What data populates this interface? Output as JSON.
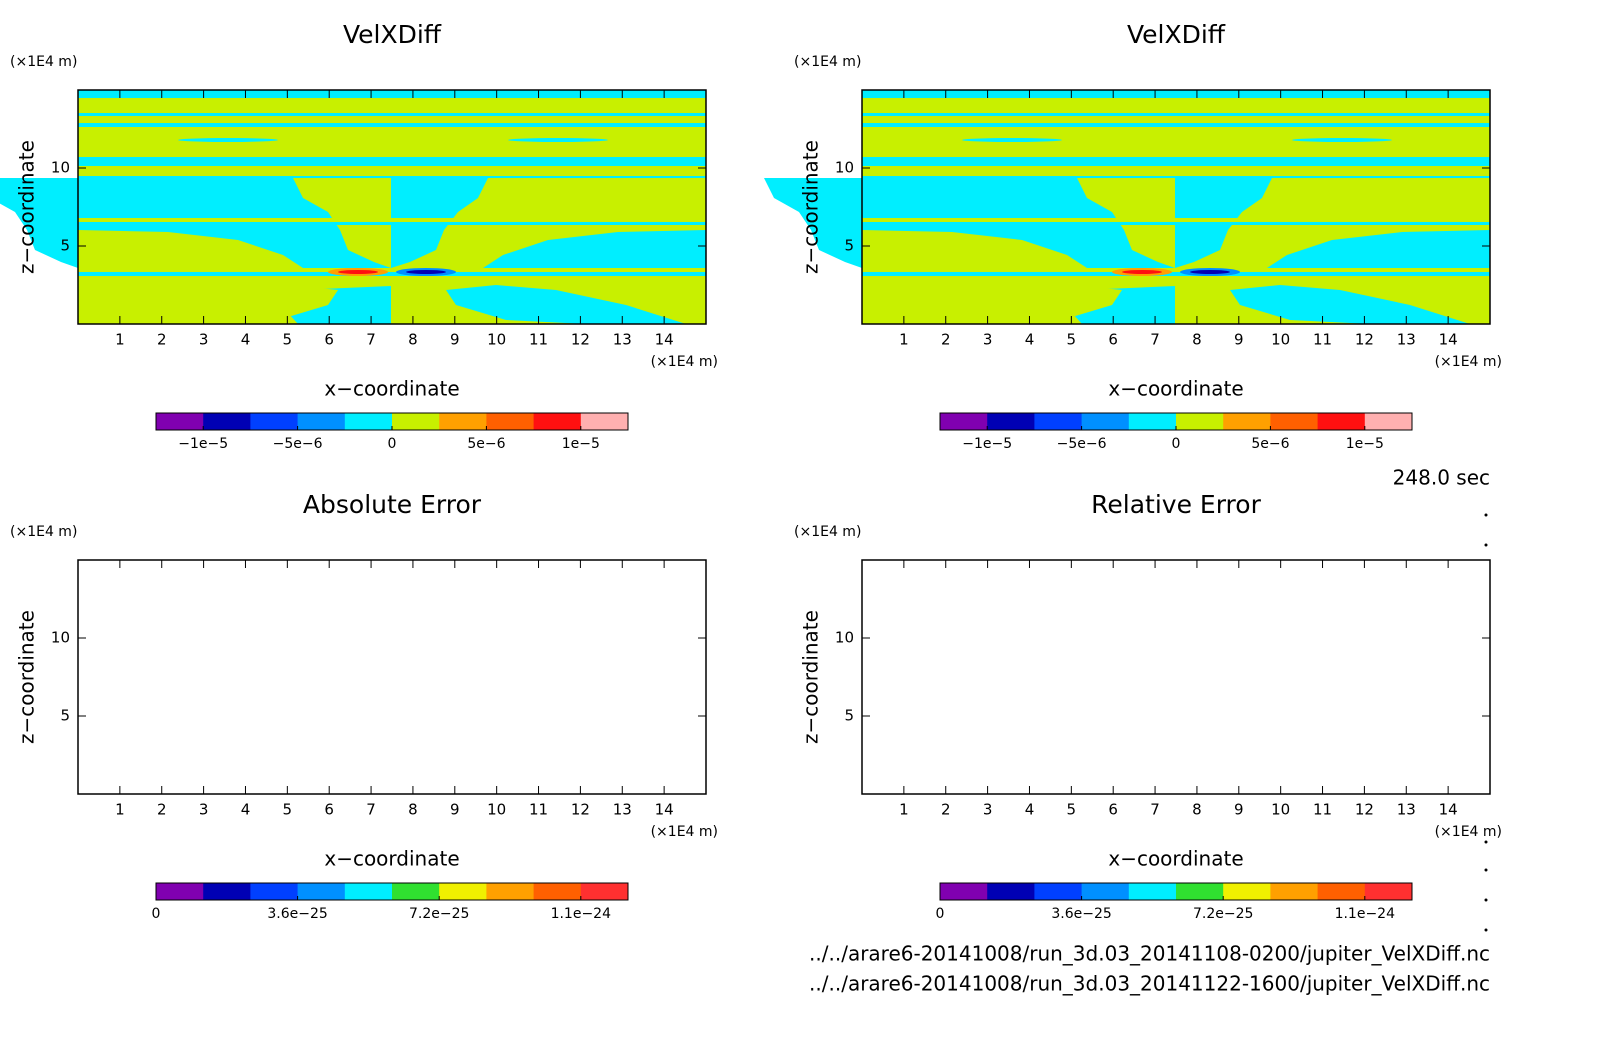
{
  "chart_data": [
    {
      "type": "contour",
      "title": "VelXDiff",
      "x_label": "x−coordinate",
      "y_label": "z−coordinate",
      "x_unit": "(×1E4 m)",
      "y_unit": "(×1E4 m)",
      "xlim": [
        0,
        15
      ],
      "ylim": [
        0,
        15
      ],
      "xticks": [
        1,
        2,
        3,
        4,
        5,
        6,
        7,
        8,
        9,
        10,
        11,
        12,
        13,
        14
      ],
      "yticks": [
        5,
        10
      ],
      "colorbar": {
        "lim": [
          -1.25e-05,
          1.25e-05
        ],
        "colors": [
          "#8000b0",
          "#0000b4",
          "#0040ff",
          "#0090ff",
          "#00eeff",
          "#c8f000",
          "#ffa000",
          "#ff6000",
          "#ff1010",
          "#ffb0b0"
        ],
        "ticks": [
          {
            "value": -1e-05,
            "label": "−1e−5"
          },
          {
            "value": -5e-06,
            "label": "−5e−6"
          },
          0,
          {
            "value": 5e-06,
            "label": "5e−6"
          },
          {
            "value": 1e-05,
            "label": "1e−5"
          }
        ]
      }
    },
    {
      "type": "contour",
      "title": "VelXDiff",
      "x_label": "x−coordinate",
      "y_label": "z−coordinate",
      "x_unit": "(×1E4 m)",
      "y_unit": "(×1E4 m)",
      "xlim": [
        0,
        15
      ],
      "ylim": [
        0,
        15
      ],
      "xticks": [
        1,
        2,
        3,
        4,
        5,
        6,
        7,
        8,
        9,
        10,
        11,
        12,
        13,
        14
      ],
      "yticks": [
        5,
        10
      ],
      "colorbar": {
        "lim": [
          -1.25e-05,
          1.25e-05
        ],
        "colors": [
          "#8000b0",
          "#0000b4",
          "#0040ff",
          "#0090ff",
          "#00eeff",
          "#c8f000",
          "#ffa000",
          "#ff6000",
          "#ff1010",
          "#ffb0b0"
        ],
        "ticks": [
          {
            "value": -1e-05,
            "label": "−1e−5"
          },
          {
            "value": -5e-06,
            "label": "−5e−6"
          },
          0,
          {
            "value": 5e-06,
            "label": "5e−6"
          },
          {
            "value": 1e-05,
            "label": "1e−5"
          }
        ]
      }
    },
    {
      "type": "empty",
      "title": "Absolute Error",
      "x_label": "x−coordinate",
      "y_label": "z−coordinate",
      "x_unit": "(×1E4 m)",
      "y_unit": "(×1E4 m)",
      "xlim": [
        0,
        15
      ],
      "ylim": [
        0,
        15
      ],
      "xticks": [
        1,
        2,
        3,
        4,
        5,
        6,
        7,
        8,
        9,
        10,
        11,
        12,
        13,
        14
      ],
      "yticks": [
        5,
        10
      ],
      "colorbar": {
        "lim": [
          0,
          1.2e-24
        ],
        "colors": [
          "#8000b0",
          "#0000b4",
          "#0040ff",
          "#0090ff",
          "#00eeff",
          "#30e030",
          "#f0f000",
          "#ffa000",
          "#ff6000",
          "#ff3030"
        ],
        "ticks": [
          0,
          {
            "value": 3.6e-25,
            "label": "3.6e−25"
          },
          {
            "value": 7.2e-25,
            "label": "7.2e−25"
          },
          {
            "value": 1.08e-24,
            "label": "1.1e−24"
          }
        ]
      }
    },
    {
      "type": "empty",
      "title": "Relative Error",
      "x_label": "x−coordinate",
      "y_label": "z−coordinate",
      "x_unit": "(×1E4 m)",
      "y_unit": "(×1E4 m)",
      "xlim": [
        0,
        15
      ],
      "ylim": [
        0,
        15
      ],
      "xticks": [
        1,
        2,
        3,
        4,
        5,
        6,
        7,
        8,
        9,
        10,
        11,
        12,
        13,
        14
      ],
      "yticks": [
        5,
        10
      ],
      "colorbar": {
        "lim": [
          0,
          1.2e-24
        ],
        "colors": [
          "#8000b0",
          "#0000b4",
          "#0040ff",
          "#0090ff",
          "#00eeff",
          "#30e030",
          "#f0f000",
          "#ffa000",
          "#ff6000",
          "#ff3030"
        ],
        "ticks": [
          0,
          {
            "value": 3.6e-25,
            "label": "3.6e−25"
          },
          {
            "value": 7.2e-25,
            "label": "7.2e−25"
          },
          {
            "value": 1.08e-24,
            "label": "1.1e−24"
          }
        ]
      }
    }
  ],
  "time_label": "248.0 sec",
  "files": [
    "../../arare6-20141008/run_3d.03_20141108-0200/jupiter_VelXDiff.nc",
    "../../arare6-20141008/run_3d.03_20141122-1600/jupiter_VelXDiff.nc"
  ]
}
